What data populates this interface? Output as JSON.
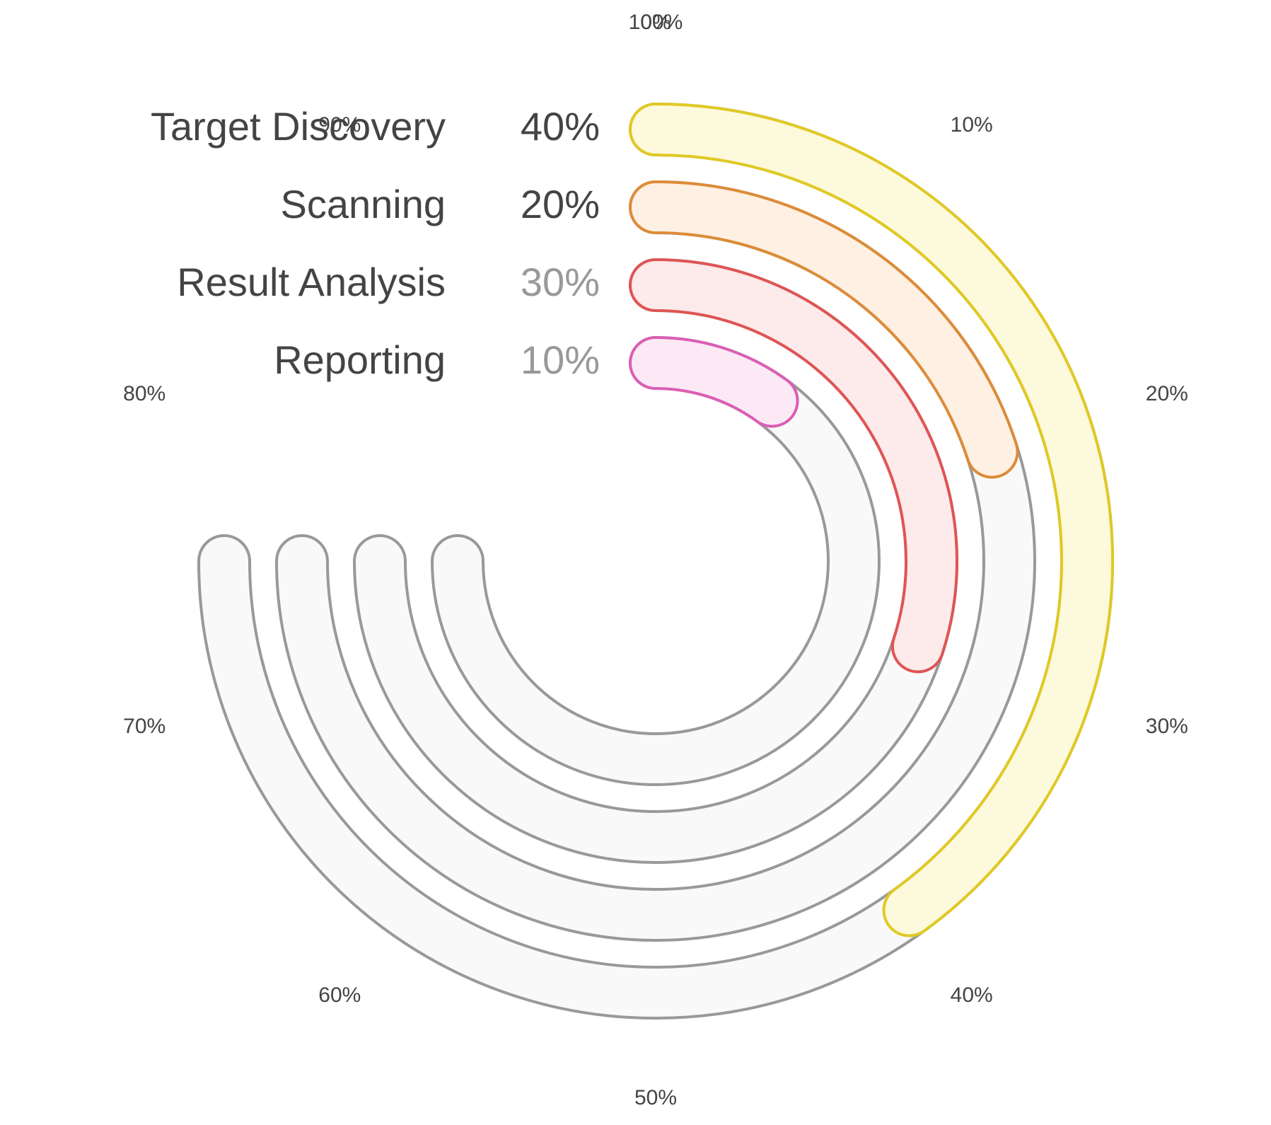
{
  "chart_data": {
    "type": "radial-bar",
    "title": "",
    "axis": {
      "min": 0,
      "max": 100,
      "unit": "%",
      "ticks": [
        "0%",
        "10%",
        "20%",
        "30%",
        "40%",
        "50%",
        "60%",
        "70%",
        "80%",
        "90%",
        "100%"
      ]
    },
    "track_range": [
      0,
      75
    ],
    "track_color": "#f9f9f9",
    "track_stroke": "#999999",
    "series": [
      {
        "name": "Target Discovery",
        "value": 40,
        "label": "40%",
        "stroke": "#e0c924",
        "fill": "#fdf9dc",
        "value_color": "#444444"
      },
      {
        "name": "Scanning",
        "value": 20,
        "label": "20%",
        "stroke": "#dc8c3a",
        "fill": "#fef0e2",
        "value_color": "#444444"
      },
      {
        "name": "Result Analysis",
        "value": 30,
        "label": "30%",
        "stroke": "#df5555",
        "fill": "#fdeaea",
        "value_color": "#999999"
      },
      {
        "name": "Reporting",
        "value": 10,
        "label": "10%",
        "stroke": "#da5fb4",
        "fill": "#fce9f5",
        "value_color": "#999999"
      }
    ]
  }
}
